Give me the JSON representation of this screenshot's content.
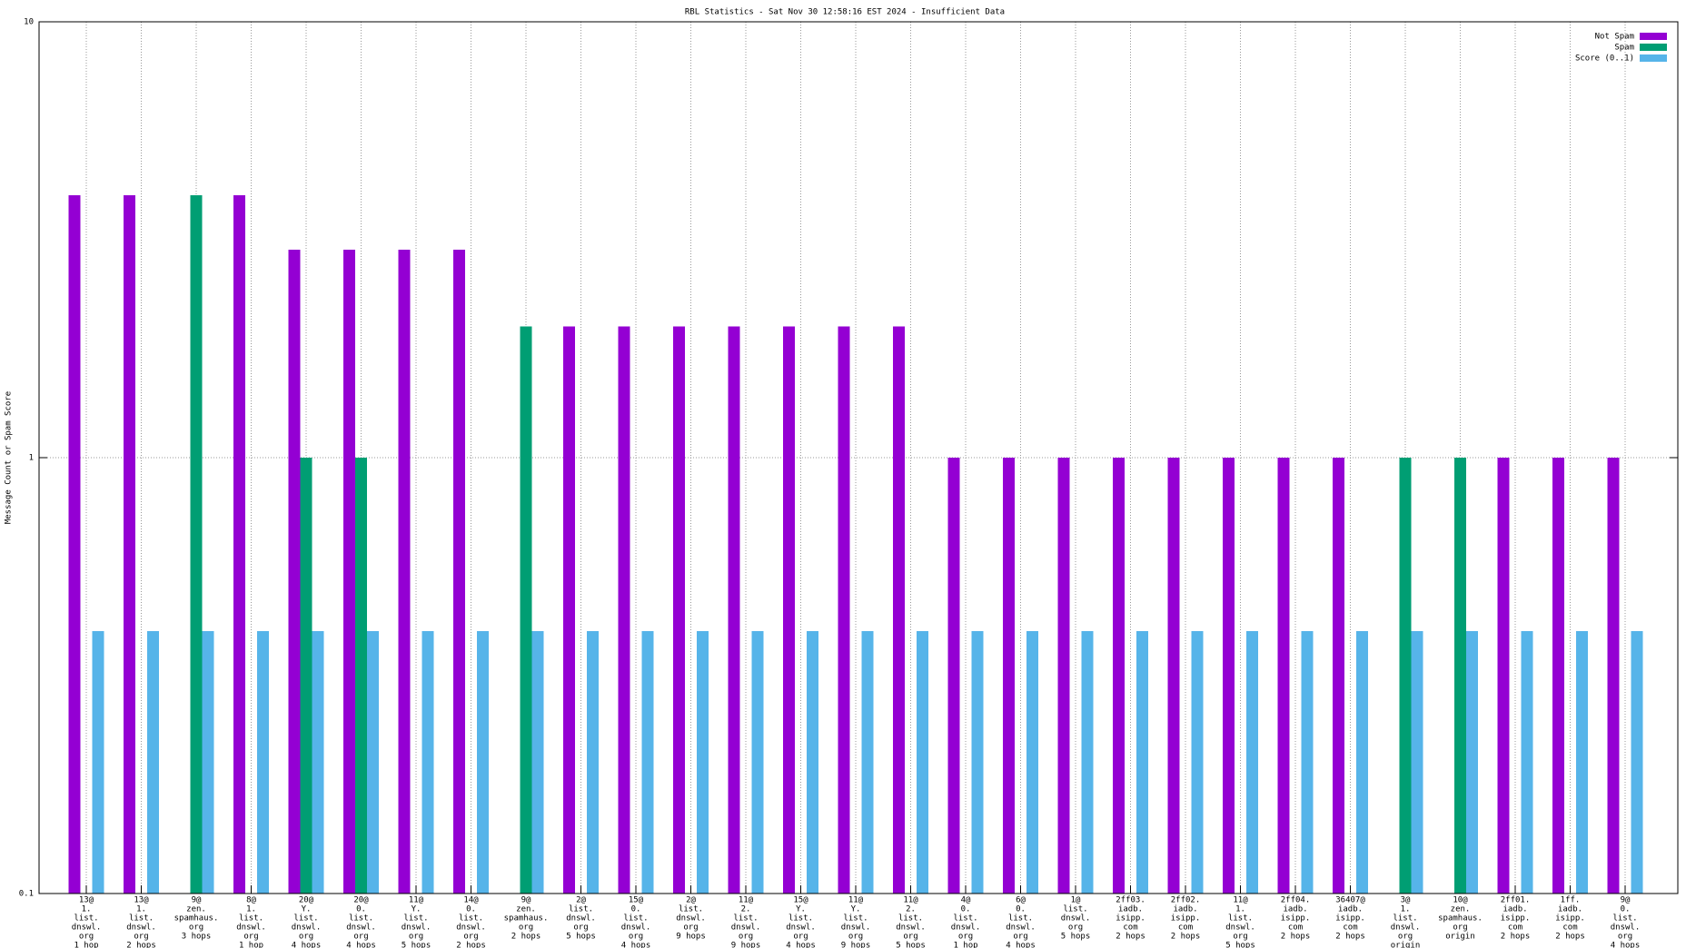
{
  "chart_data": {
    "type": "bar",
    "title": "RBL Statistics - Sat Nov 30 12:58:16 EST 2024 - Insufficient Data",
    "y_label": "Message Count or Spam Score",
    "log_y": true,
    "grid": true,
    "legend_position": "top-right",
    "ylim": [
      0.1,
      10
    ],
    "yticks": [
      0.1,
      1,
      10
    ],
    "categories": [
      [
        "13@",
        "1.",
        "list.",
        "dnswl.",
        "org",
        "1 hop"
      ],
      [
        "13@",
        "1.",
        "list.",
        "dnswl.",
        "org",
        "2 hops"
      ],
      [
        "9@",
        "zen.",
        "spamhaus.",
        "org",
        "3 hops"
      ],
      [
        "8@",
        "1.",
        "list.",
        "dnswl.",
        "org",
        "1 hop"
      ],
      [
        "20@",
        "Y.",
        "list.",
        "dnswl.",
        "org",
        "4 hops"
      ],
      [
        "20@",
        "0.",
        "list.",
        "dnswl.",
        "org",
        "4 hops"
      ],
      [
        "11@",
        "Y.",
        "list.",
        "dnswl.",
        "org",
        "5 hops"
      ],
      [
        "14@",
        "0.",
        "list.",
        "dnswl.",
        "org",
        "2 hops"
      ],
      [
        "9@",
        "zen.",
        "spamhaus.",
        "org",
        "2 hops"
      ],
      [
        "2@",
        "list.",
        "dnswl.",
        "org",
        "5 hops"
      ],
      [
        "15@",
        "0.",
        "list.",
        "dnswl.",
        "org",
        "4 hops"
      ],
      [
        "2@",
        "list.",
        "dnswl.",
        "org",
        "9 hops"
      ],
      [
        "11@",
        "2.",
        "list.",
        "dnswl.",
        "org",
        "9 hops"
      ],
      [
        "15@",
        "Y.",
        "list.",
        "dnswl.",
        "org",
        "4 hops"
      ],
      [
        "11@",
        "Y.",
        "list.",
        "dnswl.",
        "org",
        "9 hops"
      ],
      [
        "11@",
        "2.",
        "list.",
        "dnswl.",
        "org",
        "5 hops"
      ],
      [
        "4@",
        "0.",
        "list.",
        "dnswl.",
        "org",
        "1 hop"
      ],
      [
        "6@",
        "0.",
        "list.",
        "dnswl.",
        "org",
        "4 hops"
      ],
      [
        "1@",
        "list.",
        "dnswl.",
        "org",
        "5 hops"
      ],
      [
        "2ff03.",
        "iadb.",
        "isipp.",
        "com",
        "2 hops"
      ],
      [
        "2ff02.",
        "iadb.",
        "isipp.",
        "com",
        "2 hops"
      ],
      [
        "11@",
        "1.",
        "list.",
        "dnswl.",
        "org",
        "5 hops"
      ],
      [
        "2ff04.",
        "iadb.",
        "isipp.",
        "com",
        "2 hops"
      ],
      [
        "36407@",
        "iadb.",
        "isipp.",
        "com",
        "2 hops"
      ],
      [
        "3@",
        "1.",
        "list.",
        "dnswl.",
        "org",
        "origin"
      ],
      [
        "10@",
        "zen.",
        "spamhaus.",
        "org",
        "origin"
      ],
      [
        "2ff01.",
        "iadb.",
        "isipp.",
        "com",
        "2 hops"
      ],
      [
        "1ff.",
        "iadb.",
        "isipp.",
        "com",
        "2 hops"
      ],
      [
        "9@",
        "0.",
        "list.",
        "dnswl.",
        "org",
        "4 hops"
      ]
    ],
    "series": [
      {
        "name": "Not Spam",
        "color": "#9400d3",
        "values": [
          4,
          4,
          null,
          4,
          3,
          3,
          3,
          3,
          null,
          2,
          2,
          2,
          2,
          2,
          2,
          2,
          1,
          1,
          1,
          1,
          1,
          1,
          1,
          1,
          null,
          null,
          1,
          1,
          1
        ]
      },
      {
        "name": "Spam",
        "color": "#009e73",
        "values": [
          null,
          null,
          4,
          null,
          1,
          1,
          null,
          null,
          2,
          null,
          null,
          null,
          null,
          null,
          null,
          null,
          null,
          null,
          null,
          null,
          null,
          null,
          null,
          null,
          1,
          1,
          null,
          null,
          null
        ]
      },
      {
        "name": "Score (0..1)",
        "color": "#56b4e9",
        "values": [
          0.4,
          0.4,
          0.4,
          0.4,
          0.4,
          0.4,
          0.4,
          0.4,
          0.4,
          0.4,
          0.4,
          0.4,
          0.4,
          0.4,
          0.4,
          0.4,
          0.4,
          0.4,
          0.4,
          0.4,
          0.4,
          0.4,
          0.4,
          0.4,
          0.4,
          0.4,
          0.4,
          0.4,
          0.4
        ]
      }
    ]
  }
}
